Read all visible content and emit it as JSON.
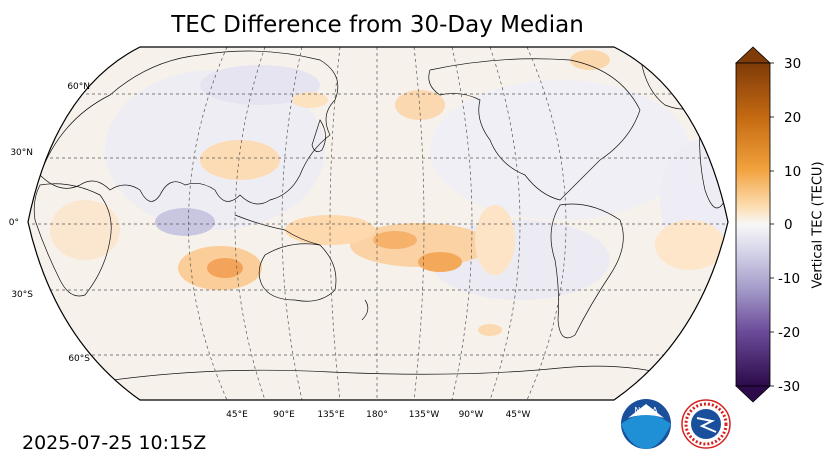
{
  "title": "TEC Difference from 30-Day Median",
  "timestamp": "2025-07-25 10:15Z",
  "map": {
    "projection": "Robinson",
    "central_longitude": 180,
    "lat_labels": [
      "60°N",
      "30°N",
      "0°",
      "30°S",
      "60°S"
    ],
    "lon_labels": [
      "45°E",
      "90°E",
      "135°E",
      "180°",
      "135°W",
      "90°W",
      "45°W"
    ],
    "gridline_style": "dashed",
    "background_color": "#f7f1ec"
  },
  "colorbar": {
    "label": "Vertical TEC (TECU)",
    "ticks": [
      "30",
      "20",
      "10",
      "0",
      "-10",
      "-20",
      "-30"
    ],
    "range": [
      -30,
      30
    ],
    "extend": "both",
    "colors": {
      "negative_max": "#2d0a4a",
      "neutral": "#f7f7f7",
      "positive_max": "#7f3b08"
    }
  },
  "logos": {
    "noaa": {
      "text": "NOAA",
      "color": "#1a4f9c"
    },
    "nws": {
      "text": "NATIONAL WEATHER SERVICE",
      "color": "#d62020"
    }
  }
}
